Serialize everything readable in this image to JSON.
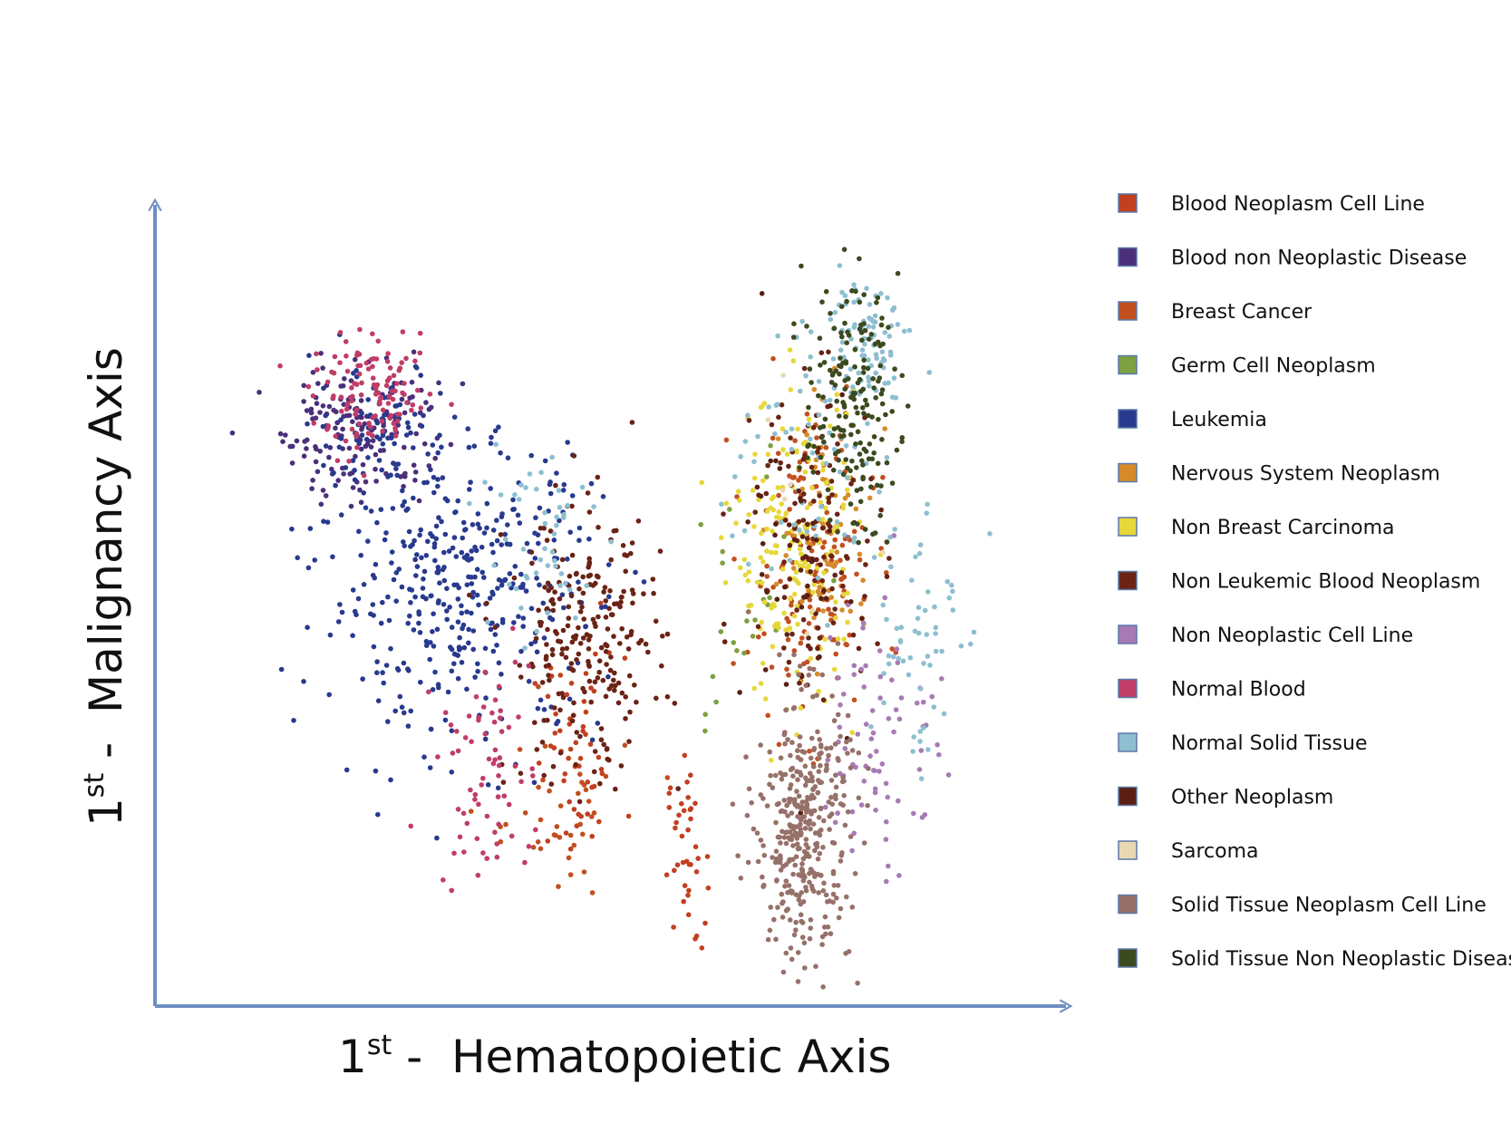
{
  "chart_data": {
    "type": "scatter",
    "title": "",
    "xlabel": {
      "ordinal": "1",
      "sup": "st",
      "sep": " -  ",
      "text": "Hematopoietic Axis"
    },
    "ylabel": {
      "ordinal": "1",
      "sup": "st",
      "sep": " -  ",
      "text": "Malignancy Axis"
    },
    "xlim": [
      0,
      100
    ],
    "ylim": [
      0,
      100
    ],
    "grid": false,
    "legend_position": "right",
    "series": [
      {
        "name": "Blood Neoplasm Cell Line",
        "color": "#c1401f",
        "clusters": [
          [
            45,
            30,
            3,
            7,
            55
          ],
          [
            59,
            18,
            1.2,
            6,
            40
          ]
        ]
      },
      {
        "name": "Blood non Neoplastic Disease",
        "color": "#4b2f7a",
        "clusters": [
          [
            17,
            74,
            5,
            5,
            160
          ]
        ]
      },
      {
        "name": "Breast Cancer",
        "color": "#c24f1f",
        "clusters": [
          [
            75,
            56,
            4,
            10,
            150
          ],
          [
            42,
            22,
            5,
            6,
            40
          ]
        ]
      },
      {
        "name": "Germ Cell Neoplasm",
        "color": "#7ea040",
        "clusters": [
          [
            65,
            50,
            5,
            12,
            25
          ]
        ]
      },
      {
        "name": "Leukemia",
        "color": "#283a8e",
        "clusters": [
          [
            30,
            53,
            9,
            10,
            420
          ],
          [
            19,
            75,
            4,
            4,
            70
          ]
        ]
      },
      {
        "name": "Nervous System Neoplasm",
        "color": "#d68b2a",
        "clusters": [
          [
            77,
            60,
            3,
            8,
            70
          ]
        ]
      },
      {
        "name": "Non Breast Carcinoma",
        "color": "#e6d83a",
        "clusters": [
          [
            73,
            58,
            4,
            10,
            190
          ]
        ]
      },
      {
        "name": "Non Leukemic Blood Neoplasm",
        "color": "#6a2315",
        "clusters": [
          [
            46,
            45,
            5,
            9,
            240
          ],
          [
            76,
            60,
            4,
            10,
            110
          ]
        ]
      },
      {
        "name": "Non Neoplastic Cell Line",
        "color": "#a87ab5",
        "clusters": [
          [
            84,
            34,
            4,
            10,
            80
          ]
        ]
      },
      {
        "name": "Normal Blood",
        "color": "#c03d67",
        "clusters": [
          [
            19,
            78,
            4,
            3.5,
            120
          ],
          [
            33,
            29,
            3,
            8,
            70
          ]
        ]
      },
      {
        "name": "Normal Solid Tissue",
        "color": "#8dbfd1",
        "clusters": [
          [
            82,
            86,
            3,
            4,
            90
          ],
          [
            88,
            48,
            3,
            10,
            60
          ],
          [
            39,
            59,
            4,
            8,
            50
          ],
          [
            74,
            68,
            5,
            8,
            60
          ]
        ]
      },
      {
        "name": "Other Neoplasm",
        "color": "#5a1e12",
        "clusters": [
          [
            75,
            56,
            4,
            12,
            50
          ]
        ]
      },
      {
        "name": "Sarcoma",
        "color": "#e8d9b4",
        "clusters": [
          [
            74,
            55,
            4,
            10,
            8
          ]
        ]
      },
      {
        "name": "Solid Tissue Neoplasm Cell Line",
        "color": "#96716a",
        "clusters": [
          [
            74,
            21,
            3,
            9,
            380
          ]
        ]
      },
      {
        "name": "Solid Tissue Non Neoplastic Disease",
        "color": "#3c4a1f",
        "clusters": [
          [
            80,
            77,
            3,
            8,
            180
          ]
        ]
      }
    ],
    "sample_note": ""
  }
}
